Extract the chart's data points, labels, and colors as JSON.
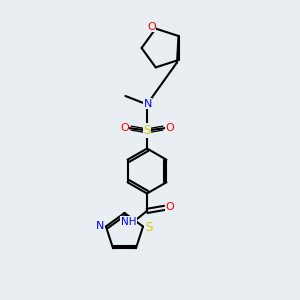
{
  "background_color": "#e8eef2",
  "atom_colors": {
    "C": "#000000",
    "N": "#0000ff",
    "O": "#ff0000",
    "S": "#cccc00",
    "H": "#555555"
  },
  "figsize": [
    3.0,
    3.0
  ],
  "dpi": 100
}
